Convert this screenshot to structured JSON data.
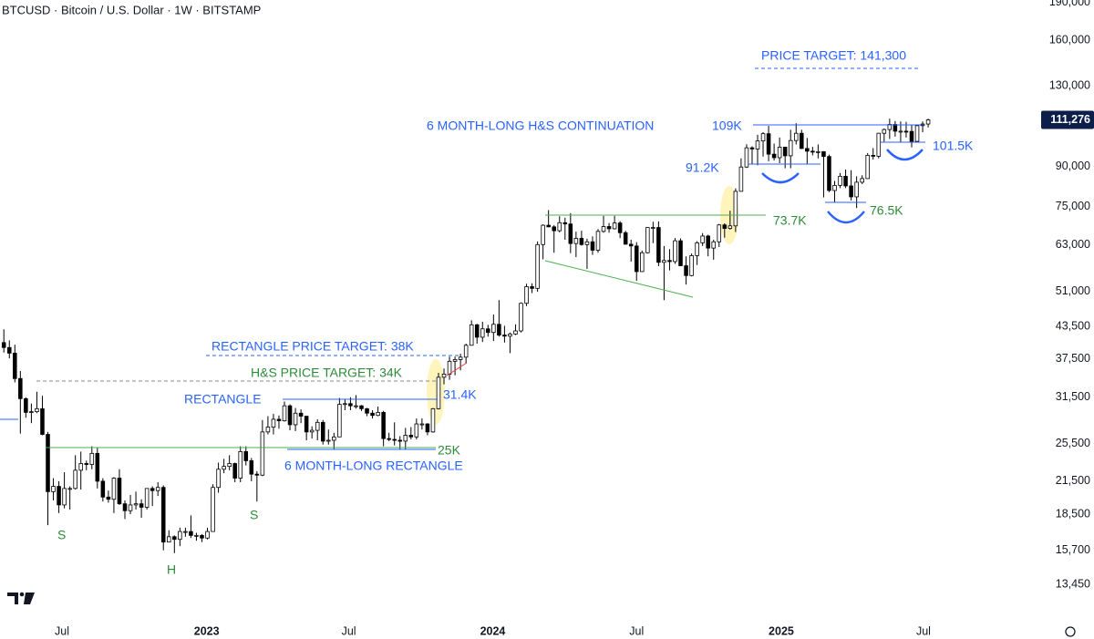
{
  "chart_data": {
    "type": "candlestick",
    "title": "BTCUSD · Bitcoin / U.S. Dollar · 1W · BITSTAMP",
    "log_scale": true,
    "grid": false,
    "up_color": "#ffffff",
    "down_color": "#000000",
    "wick_color": "#000000",
    "xlim": [
      -0.7,
      188.2
    ],
    "ylim": [
      11680,
      192000
    ],
    "xticks": [
      {
        "value": 10.57,
        "label": "Jul"
      },
      {
        "value": 36.86,
        "label": "2023"
      },
      {
        "value": 62.7,
        "label": "Jul"
      },
      {
        "value": 88.86,
        "label": "2024"
      },
      {
        "value": 115.0,
        "label": "Jul"
      },
      {
        "value": 141.3,
        "label": "2025"
      },
      {
        "value": 167.15,
        "label": "Jul"
      }
    ],
    "yticks": [
      {
        "value": 190000,
        "label": "190,000"
      },
      {
        "value": 160000,
        "label": "160,000"
      },
      {
        "value": 130000,
        "label": "130,000"
      },
      {
        "value": 90000,
        "label": "90,000"
      },
      {
        "value": 75000,
        "label": "75,000"
      },
      {
        "value": 63000,
        "label": "63,000"
      },
      {
        "value": 51000,
        "label": "51,000"
      },
      {
        "value": 43500,
        "label": "43,500"
      },
      {
        "value": 37500,
        "label": "37,500"
      },
      {
        "value": 31500,
        "label": "31,500"
      },
      {
        "value": 25500,
        "label": "25,500"
      },
      {
        "value": 21500,
        "label": "21,500"
      },
      {
        "value": 18500,
        "label": "18,500"
      },
      {
        "value": 15700,
        "label": "15,700"
      },
      {
        "value": 13450,
        "label": "13,450"
      }
    ],
    "last_price_label": "111,276",
    "annotations": [
      "PRICE TARGET: 141,300",
      "6 MONTH-LONG H&S CONTINUATION",
      "109K",
      "91.2K",
      "101.5K",
      "73.7K",
      "76.5K",
      "RECTANGLE PRICE TARGET: 38K",
      "H&S PRICE TARGET: 34K",
      "RECTANGLE",
      "31.4K",
      "25K",
      "6 MONTH-LONG RECTANGLE",
      "S",
      "H",
      "S"
    ],
    "ohlc": [
      [
        40400,
        42900,
        38600,
        39500
      ],
      [
        39500,
        40800,
        37600,
        38500
      ],
      [
        38500,
        40000,
        33700,
        34300
      ],
      [
        34300,
        35500,
        26700,
        31300
      ],
      [
        31300,
        31500,
        28700,
        29400
      ],
      [
        29400,
        30600,
        28000,
        29500
      ],
      [
        29500,
        32300,
        29300,
        29900
      ],
      [
        29900,
        31700,
        26500,
        26600
      ],
      [
        26600,
        26900,
        17600,
        20500
      ],
      [
        20500,
        21800,
        19700,
        21000
      ],
      [
        21000,
        21500,
        18600,
        19300
      ],
      [
        19300,
        22400,
        19000,
        20800
      ],
      [
        20800,
        21000,
        18900,
        20800
      ],
      [
        20800,
        24200,
        20700,
        22600
      ],
      [
        22600,
        24600,
        20700,
        23300
      ],
      [
        23300,
        23600,
        22600,
        23200
      ],
      [
        23200,
        25200,
        22700,
        24400
      ],
      [
        24400,
        25000,
        20800,
        21500
      ],
      [
        21500,
        21800,
        19600,
        20000
      ],
      [
        20000,
        20600,
        19500,
        19800
      ],
      [
        19800,
        21900,
        18600,
        21800
      ],
      [
        21800,
        22700,
        19300,
        19400
      ],
      [
        19400,
        19700,
        18100,
        18800
      ],
      [
        18800,
        20200,
        18500,
        19300
      ],
      [
        19300,
        20500,
        18900,
        19400
      ],
      [
        19400,
        19800,
        18200,
        19100
      ],
      [
        19100,
        20800,
        18900,
        20800
      ],
      [
        20800,
        21000,
        19200,
        20600
      ],
      [
        20600,
        21400,
        20100,
        20900
      ],
      [
        20900,
        21100,
        15700,
        16300
      ],
      [
        16300,
        17200,
        16300,
        16700
      ],
      [
        16700,
        16800,
        15500,
        16500
      ],
      [
        16500,
        17400,
        16000,
        17100
      ],
      [
        17100,
        17400,
        16700,
        17100
      ],
      [
        17100,
        18400,
        16600,
        16800
      ],
      [
        16800,
        17000,
        16400,
        16800
      ],
      [
        16800,
        16900,
        16300,
        16600
      ],
      [
        16600,
        17400,
        16500,
        17100
      ],
      [
        17100,
        21200,
        17100,
        20900
      ],
      [
        20900,
        23400,
        20400,
        22700
      ],
      [
        22700,
        23800,
        22300,
        23000
      ],
      [
        23000,
        24200,
        22600,
        23300
      ],
      [
        23300,
        23400,
        21400,
        21800
      ],
      [
        21800,
        25200,
        21400,
        24600
      ],
      [
        24600,
        25200,
        23100,
        23600
      ],
      [
        23600,
        23900,
        21500,
        22200
      ],
      [
        22200,
        22500,
        19600,
        22100
      ],
      [
        22100,
        28400,
        22000,
        26900
      ],
      [
        26900,
        28900,
        26600,
        27500
      ],
      [
        27500,
        29200,
        26600,
        28500
      ],
      [
        28500,
        29000,
        27300,
        28300
      ],
      [
        28300,
        30900,
        28200,
        30300
      ],
      [
        30300,
        30500,
        27100,
        27800
      ],
      [
        27800,
        30000,
        27000,
        29300
      ],
      [
        29300,
        29800,
        28000,
        28900
      ],
      [
        28900,
        28900,
        25900,
        26900
      ],
      [
        26900,
        27600,
        26100,
        27100
      ],
      [
        27100,
        28500,
        25900,
        28100
      ],
      [
        28100,
        28400,
        25400,
        25800
      ],
      [
        25800,
        27200,
        25400,
        25900
      ],
      [
        25900,
        26800,
        24800,
        26300
      ],
      [
        26300,
        31400,
        26300,
        30500
      ],
      [
        30500,
        31200,
        29700,
        30600
      ],
      [
        30600,
        31500,
        29700,
        30300
      ],
      [
        30300,
        31800,
        29900,
        30300
      ],
      [
        30300,
        30400,
        29600,
        29900
      ],
      [
        29900,
        30000,
        28900,
        29300
      ],
      [
        29300,
        29700,
        28600,
        29000
      ],
      [
        29000,
        30200,
        28900,
        29400
      ],
      [
        29400,
        29600,
        25200,
        26100
      ],
      [
        26100,
        26800,
        25800,
        26000
      ],
      [
        26000,
        28100,
        25300,
        25900
      ],
      [
        25900,
        26400,
        24900,
        25800
      ],
      [
        25800,
        27400,
        24900,
        26500
      ],
      [
        26500,
        27500,
        26000,
        26300
      ],
      [
        26300,
        28600,
        26000,
        27900
      ],
      [
        27900,
        28600,
        27200,
        27900
      ],
      [
        27900,
        28000,
        26500,
        26900
      ],
      [
        26900,
        30000,
        26800,
        29900
      ],
      [
        29900,
        35200,
        29800,
        34500
      ],
      [
        34500,
        35900,
        33400,
        35000
      ],
      [
        35000,
        37900,
        34100,
        37100
      ],
      [
        37100,
        37900,
        34800,
        37400
      ],
      [
        37400,
        38400,
        35600,
        37800
      ],
      [
        37800,
        40200,
        36700,
        39900
      ],
      [
        39900,
        44700,
        39900,
        43800
      ],
      [
        43800,
        44000,
        40200,
        41400
      ],
      [
        41400,
        44400,
        40500,
        43000
      ],
      [
        43000,
        43800,
        41500,
        42300
      ],
      [
        42300,
        45900,
        40700,
        43900
      ],
      [
        43900,
        49000,
        41500,
        41800
      ],
      [
        41800,
        43600,
        40400,
        41600
      ],
      [
        41600,
        42300,
        38500,
        42000
      ],
      [
        42000,
        43900,
        41800,
        42600
      ],
      [
        42600,
        48500,
        42300,
        48300
      ],
      [
        48300,
        52800,
        47700,
        52100
      ],
      [
        52100,
        52900,
        50600,
        51700
      ],
      [
        51700,
        64000,
        50900,
        63100
      ],
      [
        63100,
        69200,
        59000,
        68900
      ],
      [
        68900,
        73800,
        68300,
        68400
      ],
      [
        68400,
        68900,
        60800,
        67200
      ],
      [
        67200,
        71800,
        66700,
        69700
      ],
      [
        69700,
        71300,
        64500,
        69300
      ],
      [
        69300,
        72800,
        60700,
        63400
      ],
      [
        63400,
        66900,
        59600,
        64900
      ],
      [
        64900,
        67200,
        62800,
        63100
      ],
      [
        63100,
        64800,
        56500,
        63900
      ],
      [
        63900,
        65500,
        60200,
        61500
      ],
      [
        61500,
        67700,
        60800,
        67000
      ],
      [
        67000,
        71900,
        66600,
        68500
      ],
      [
        68500,
        69600,
        66600,
        67800
      ],
      [
        67800,
        71900,
        67600,
        69600
      ],
      [
        69600,
        70200,
        65000,
        66600
      ],
      [
        66600,
        67200,
        63100,
        63200
      ],
      [
        63200,
        64500,
        58400,
        62700
      ],
      [
        62700,
        63800,
        53500,
        55800
      ],
      [
        55800,
        61400,
        55700,
        60800
      ],
      [
        60800,
        68300,
        60600,
        68200
      ],
      [
        68200,
        70000,
        63500,
        68200
      ],
      [
        68200,
        70100,
        57200,
        58200
      ],
      [
        58200,
        62700,
        49000,
        58700
      ],
      [
        58700,
        61800,
        56100,
        58400
      ],
      [
        58400,
        65000,
        57800,
        64200
      ],
      [
        64200,
        64900,
        57200,
        57300
      ],
      [
        57300,
        59800,
        52600,
        54800
      ],
      [
        54800,
        60600,
        54600,
        60000
      ],
      [
        60000,
        64100,
        57500,
        63600
      ],
      [
        63600,
        66500,
        62700,
        65600
      ],
      [
        65600,
        66000,
        59800,
        62100
      ],
      [
        62100,
        64500,
        58900,
        63900
      ],
      [
        63900,
        69300,
        62400,
        69000
      ],
      [
        69000,
        69500,
        65100,
        67900
      ],
      [
        67900,
        73600,
        67500,
        68700
      ],
      [
        68700,
        81500,
        66800,
        80400
      ],
      [
        80400,
        93400,
        80300,
        89800
      ],
      [
        89800,
        99600,
        89400,
        98000
      ],
      [
        98000,
        98700,
        90800,
        97500
      ],
      [
        97500,
        104000,
        90500,
        101100
      ],
      [
        101100,
        105200,
        94200,
        104500
      ],
      [
        104500,
        108300,
        92200,
        95200
      ],
      [
        95200,
        99900,
        92500,
        93700
      ],
      [
        93700,
        102700,
        91400,
        98300
      ],
      [
        98300,
        98300,
        89300,
        94500
      ],
      [
        94500,
        106400,
        89300,
        101300
      ],
      [
        101300,
        109600,
        99500,
        104700
      ],
      [
        104700,
        106400,
        97500,
        97700
      ],
      [
        97700,
        102500,
        91200,
        96500
      ],
      [
        96500,
        98400,
        94700,
        96100
      ],
      [
        96100,
        99500,
        93400,
        96300
      ],
      [
        96300,
        96500,
        78200,
        94200
      ],
      [
        94200,
        95000,
        80100,
        80700
      ],
      [
        80700,
        84300,
        76600,
        82600
      ],
      [
        82600,
        87400,
        81600,
        86100
      ],
      [
        86100,
        88800,
        81600,
        82400
      ],
      [
        82400,
        88500,
        77100,
        78400
      ],
      [
        78400,
        86100,
        74500,
        83800
      ],
      [
        83800,
        86500,
        83100,
        85200
      ],
      [
        85200,
        95700,
        85100,
        94700
      ],
      [
        94700,
        97900,
        92900,
        94300
      ],
      [
        94300,
        104900,
        93400,
        104700
      ],
      [
        104700,
        107000,
        100800,
        106500
      ],
      [
        106500,
        111900,
        102000,
        109000
      ],
      [
        109000,
        110700,
        103100,
        105700
      ],
      [
        105700,
        110500,
        100400,
        105700
      ],
      [
        105700,
        110300,
        102700,
        105600
      ],
      [
        105600,
        108900,
        98200,
        100900
      ],
      [
        100900,
        108500,
        100500,
        108400
      ],
      [
        108400,
        110500,
        105200,
        109200
      ],
      [
        109200,
        111900,
        107500,
        111276
      ]
    ]
  }
}
